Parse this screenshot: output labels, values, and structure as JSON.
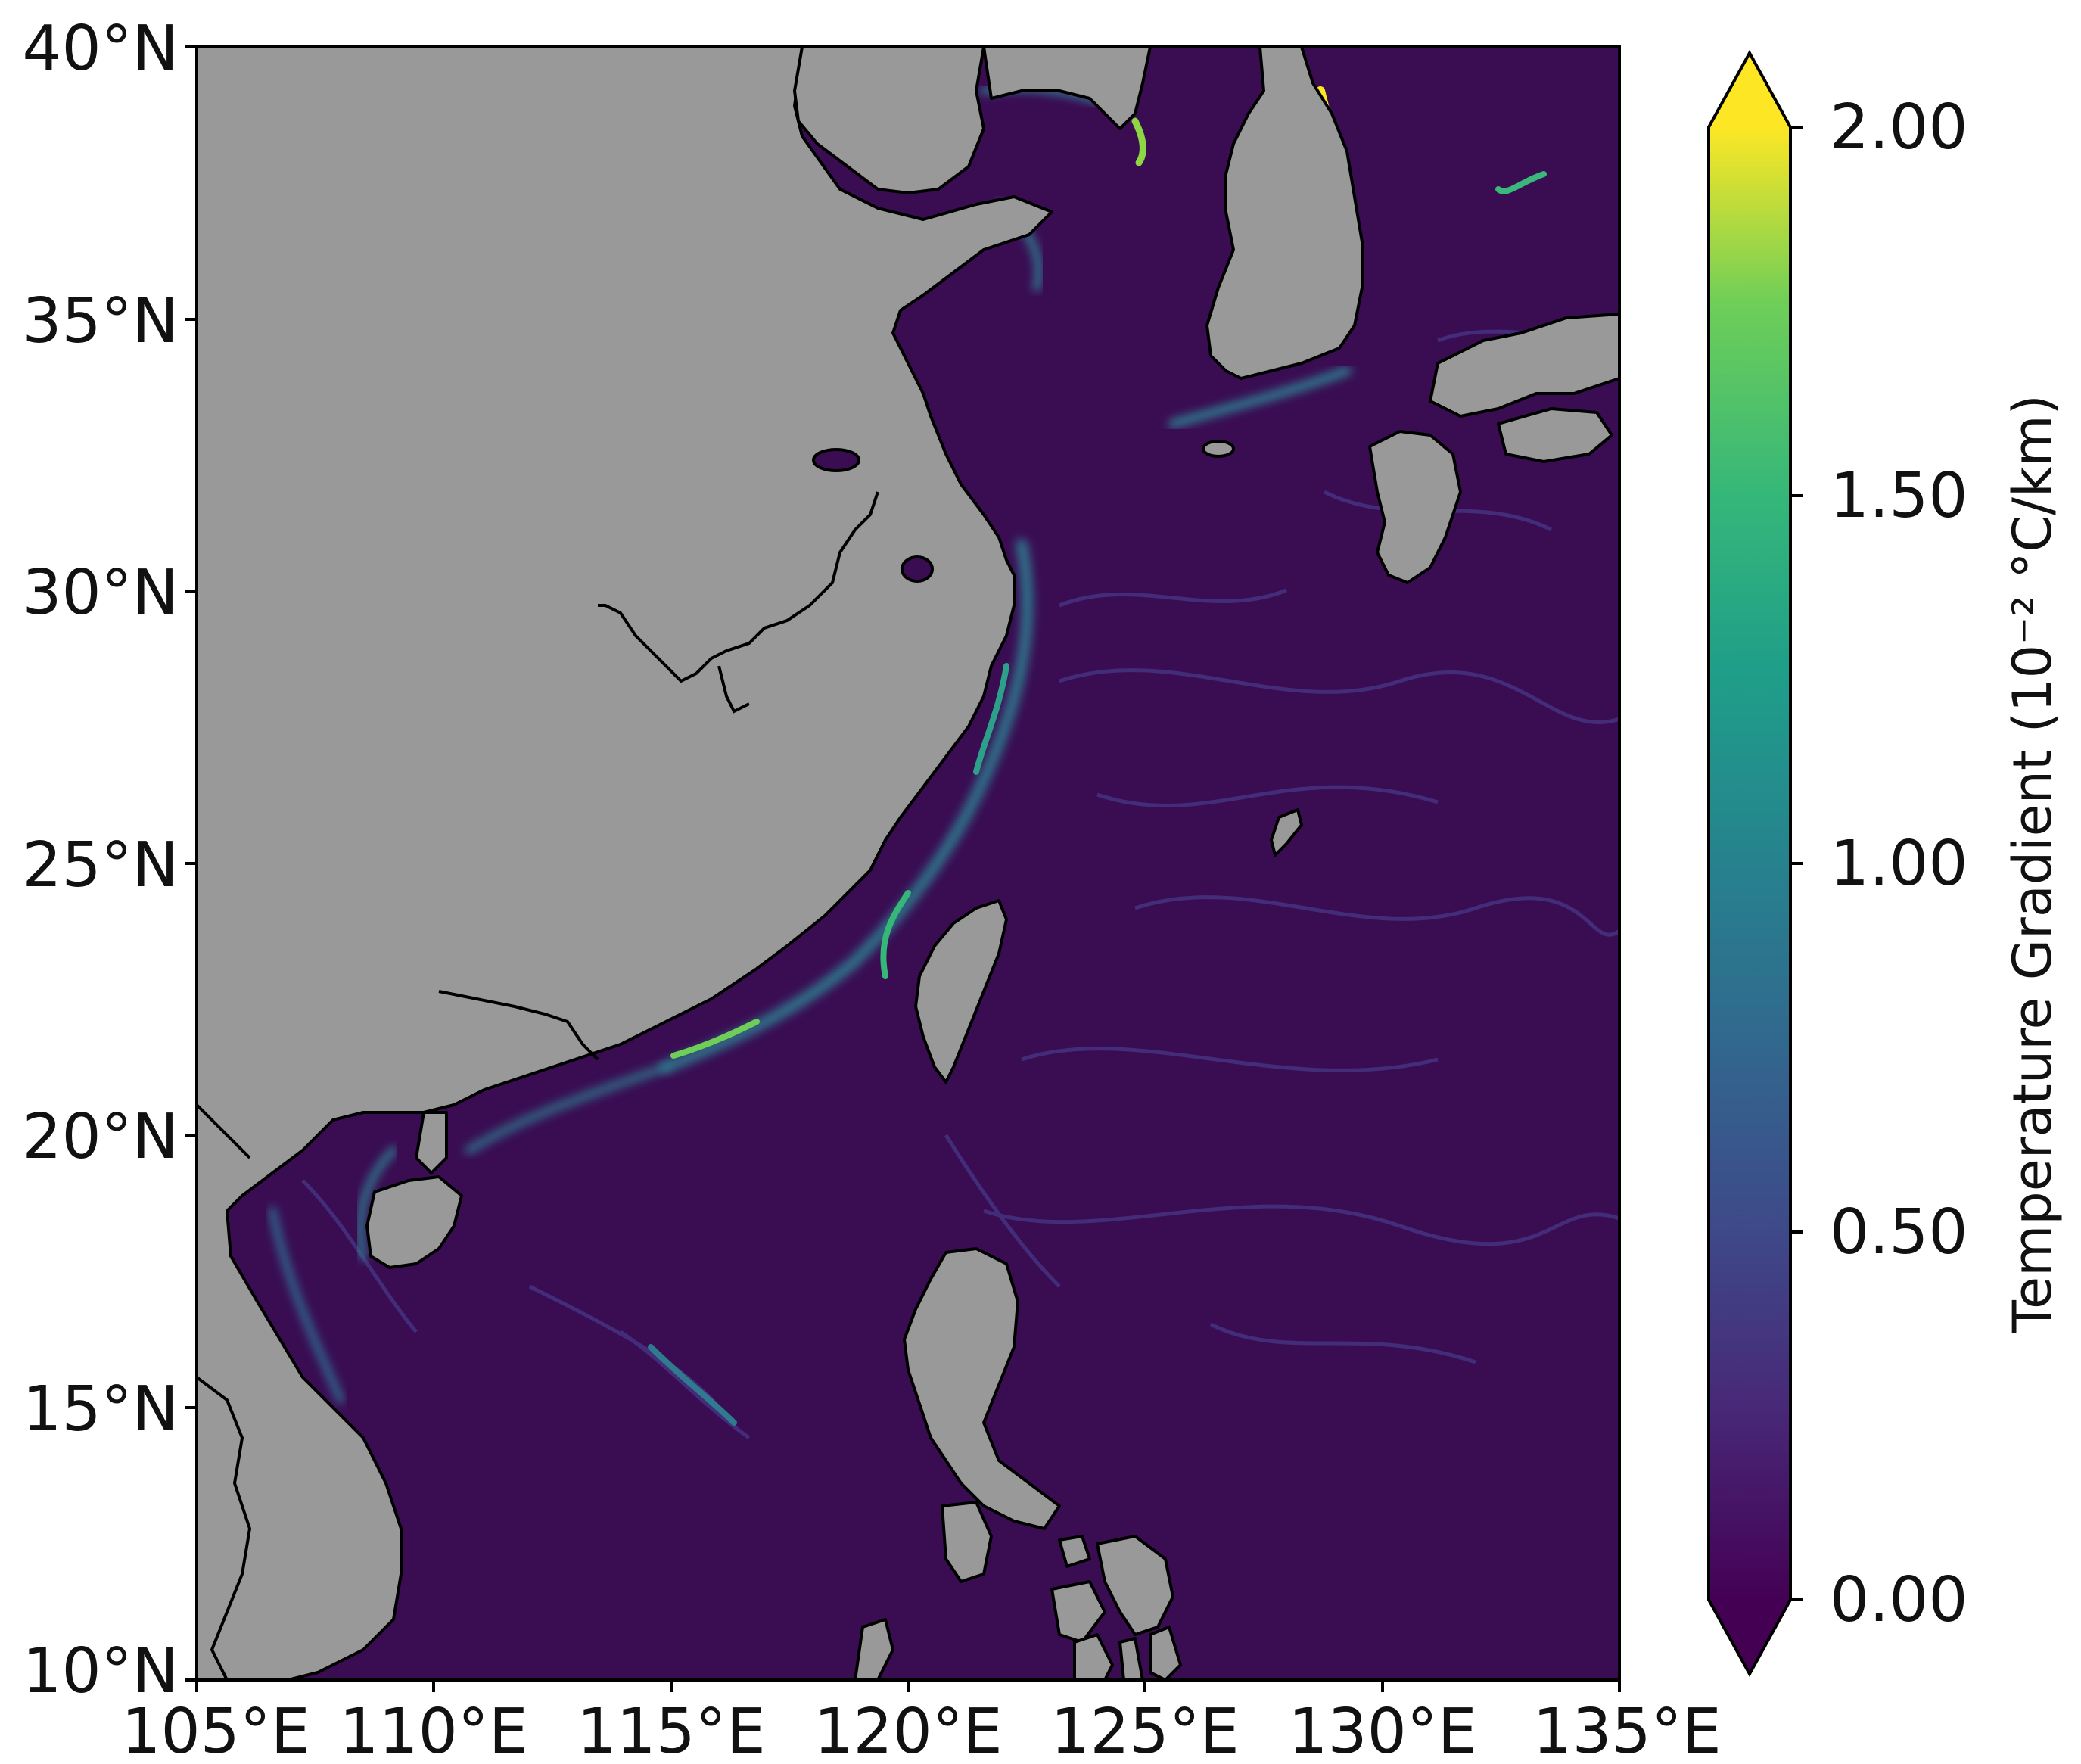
{
  "map": {
    "x_ticks": [
      "105°E",
      "110°E",
      "115°E",
      "120°E",
      "125°E",
      "130°E",
      "135°E"
    ],
    "y_ticks": [
      "40°N",
      "35°N",
      "30°N",
      "25°N",
      "20°N",
      "15°N",
      "10°N"
    ],
    "land_color": "#999999",
    "ocean_color": "#3b0f55",
    "coast_color": "#000000"
  },
  "colorbar": {
    "title": "Temperature Gradient (10⁻² °C/km)",
    "ticks": [
      "2.00",
      "1.50",
      "1.00",
      "0.50",
      "0.00"
    ],
    "range": [
      0,
      2
    ],
    "colormap": "viridis",
    "extend": "both",
    "colors": [
      "#440154",
      "#3b528b",
      "#21908d",
      "#5dc962",
      "#fde725"
    ]
  }
}
